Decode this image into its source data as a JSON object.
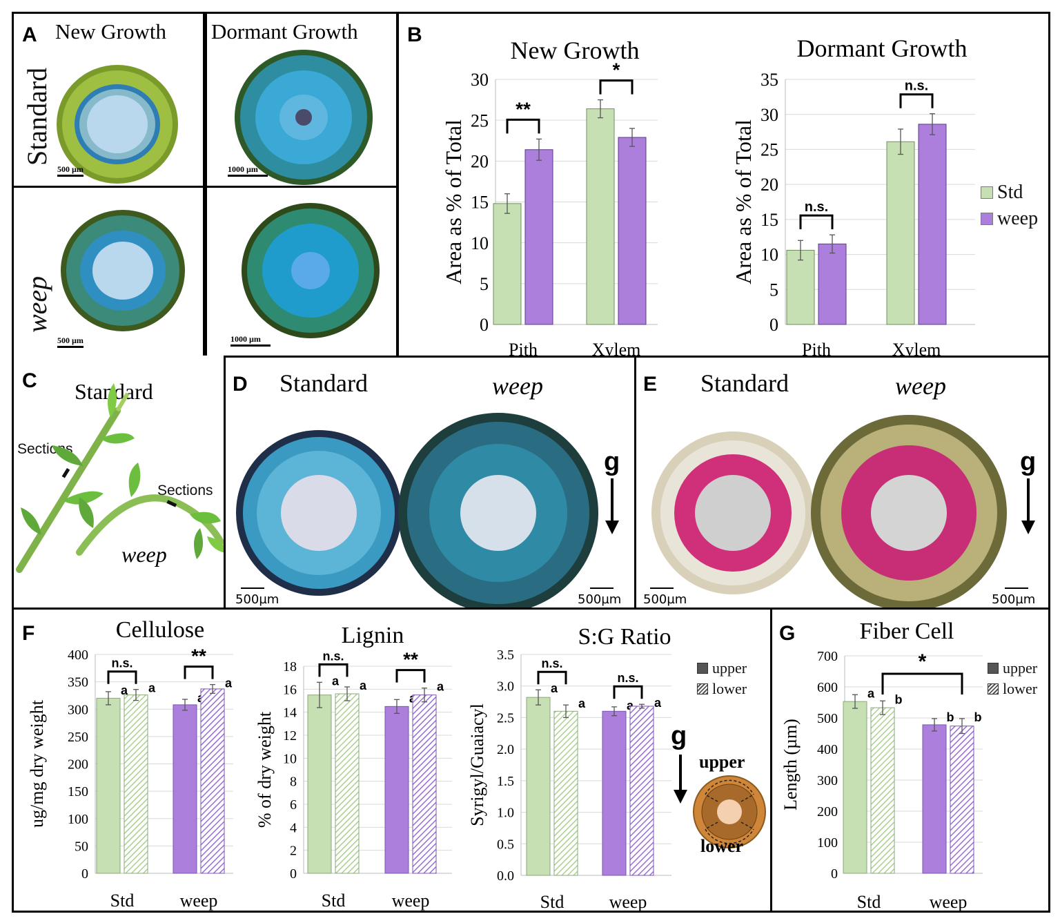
{
  "panelA": {
    "letter": "A",
    "col_new": "New Growth",
    "col_dormant": "Dormant Growth",
    "row_standard": "Standard",
    "row_weep": "weep",
    "scale_new": "500 µm",
    "scale_dormant": "1000 µm"
  },
  "panelB": {
    "letter": "B",
    "legend": [
      "Std",
      "weep"
    ],
    "colors": {
      "std": "#c6e0b4",
      "weep": "#ab7fdb"
    },
    "sig_new": [
      "**",
      "*"
    ],
    "sig_dormant": [
      "n.s.",
      "n.s."
    ]
  },
  "panelC": {
    "letter": "C",
    "standard": "Standard",
    "weep": "weep",
    "sections1": "Sections",
    "sections2": "Sections"
  },
  "panelD": {
    "letter": "D",
    "standard": "Standard",
    "weep": "weep",
    "g": "g",
    "scale_left": "500µm",
    "scale_right": "500µm"
  },
  "panelE": {
    "letter": "E",
    "standard": "Standard",
    "weep": "weep",
    "g": "g",
    "scale_left": "500µm",
    "scale_right": "500µm"
  },
  "panelF": {
    "letter": "F",
    "legend": [
      "upper",
      "lower"
    ],
    "g": "g",
    "diagram_upper": "upper",
    "diagram_lower": "lower"
  },
  "panelG": {
    "letter": "G",
    "legend": [
      "upper",
      "lower"
    ],
    "sig": "*"
  },
  "chart_data": [
    {
      "id": "B1",
      "type": "bar",
      "title": "New Growth",
      "ylabel": "Area as % of Total",
      "categories": [
        "Pith",
        "Xylem"
      ],
      "series": [
        {
          "name": "Std",
          "values": [
            14.8,
            26.4
          ],
          "err": [
            1.2,
            1.1
          ]
        },
        {
          "name": "weep",
          "values": [
            21.4,
            22.9
          ],
          "err": [
            1.3,
            1.1
          ]
        }
      ],
      "ylim": [
        0,
        30
      ],
      "ticks": [
        0,
        5,
        10,
        15,
        20,
        25,
        30
      ],
      "tick_labels": [
        "0",
        "5",
        "10",
        "15",
        "20",
        "25",
        "30"
      ]
    },
    {
      "id": "B2",
      "type": "bar",
      "title": "Dormant Growth",
      "ylabel": "Area as % of Total",
      "categories": [
        "Pith",
        "Xylem"
      ],
      "series": [
        {
          "name": "Std",
          "values": [
            10.6,
            26.1
          ],
          "err": [
            1.4,
            1.8
          ]
        },
        {
          "name": "weep",
          "values": [
            11.5,
            28.6
          ],
          "err": [
            1.3,
            1.5
          ]
        }
      ],
      "ylim": [
        0,
        35
      ],
      "ticks": [
        0,
        5,
        10,
        15,
        20,
        25,
        30,
        35
      ],
      "tick_labels": [
        "0",
        "5",
        "10",
        "15",
        "20",
        "25",
        "30",
        "35"
      ]
    },
    {
      "id": "F1",
      "type": "bar",
      "title": "Cellulose",
      "ylabel": "ug/mg dry weight",
      "categories": [
        "Std",
        "weep"
      ],
      "series": [
        {
          "name": "upper",
          "values": [
            320,
            308
          ],
          "err": [
            12,
            10
          ],
          "letters": [
            "a",
            "a"
          ]
        },
        {
          "name": "lower",
          "values": [
            326,
            337
          ],
          "err": [
            10,
            8
          ],
          "letters": [
            "a",
            "a"
          ]
        }
      ],
      "sig": [
        "n.s.",
        "**"
      ],
      "ylim": [
        0,
        400
      ],
      "ticks": [
        0,
        50,
        100,
        150,
        200,
        250,
        300,
        350,
        400
      ],
      "tick_labels": [
        "0",
        "50",
        "100",
        "150",
        "200",
        "250",
        "300",
        "350",
        "400"
      ]
    },
    {
      "id": "F2",
      "type": "bar",
      "title": "Lignin",
      "ylabel": "% of dry weight",
      "categories": [
        "Std",
        "weep"
      ],
      "series": [
        {
          "name": "upper",
          "values": [
            15.5,
            14.5
          ],
          "err": [
            1.1,
            0.6
          ],
          "letters": [
            "a",
            "a"
          ]
        },
        {
          "name": "lower",
          "values": [
            15.6,
            15.5
          ],
          "err": [
            0.6,
            0.6
          ],
          "letters": [
            "a",
            "a"
          ]
        }
      ],
      "sig": [
        "n.s.",
        "**"
      ],
      "ylim": [
        0,
        18
      ],
      "ticks": [
        0,
        2,
        4,
        6,
        8,
        10,
        12,
        14,
        16,
        18
      ],
      "tick_labels": [
        "0",
        "2",
        "4",
        "6",
        "8",
        "10",
        "12",
        "14",
        "16",
        "18"
      ]
    },
    {
      "id": "F3",
      "type": "bar",
      "title": "S:G Ratio",
      "ylabel": "Syrigyl/Guaiacyl",
      "categories": [
        "Std",
        "weep"
      ],
      "series": [
        {
          "name": "upper",
          "values": [
            2.82,
            2.6
          ],
          "err": [
            0.12,
            0.07
          ],
          "letters": [
            "a",
            "a"
          ]
        },
        {
          "name": "lower",
          "values": [
            2.6,
            2.68
          ],
          "err": [
            0.1,
            0.03
          ],
          "letters": [
            "a",
            "a"
          ]
        }
      ],
      "sig": [
        "n.s.",
        "n.s."
      ],
      "ylim": [
        0,
        3.5
      ],
      "ticks": [
        0,
        0.5,
        1,
        1.5,
        2,
        2.5,
        3,
        3.5
      ],
      "tick_labels": [
        "0.0",
        "0.5",
        "1.0",
        "1.5",
        "2.0",
        "2.5",
        "3.0",
        "3.5"
      ]
    },
    {
      "id": "G1",
      "type": "bar",
      "title": "Fiber Cell",
      "ylabel": "Length (µm)",
      "categories": [
        "Std",
        "weep"
      ],
      "series": [
        {
          "name": "upper",
          "values": [
            553,
            478
          ],
          "err": [
            22,
            20
          ],
          "letters": [
            "a",
            "b"
          ]
        },
        {
          "name": "lower",
          "values": [
            533,
            474
          ],
          "err": [
            22,
            24
          ],
          "letters": [
            "b",
            "b"
          ]
        }
      ],
      "sig": [
        "*"
      ],
      "ylim": [
        0,
        700
      ],
      "ticks": [
        0,
        100,
        200,
        300,
        400,
        500,
        600,
        700
      ],
      "tick_labels": [
        "0",
        "100",
        "200",
        "300",
        "400",
        "500",
        "600",
        "700"
      ]
    }
  ]
}
